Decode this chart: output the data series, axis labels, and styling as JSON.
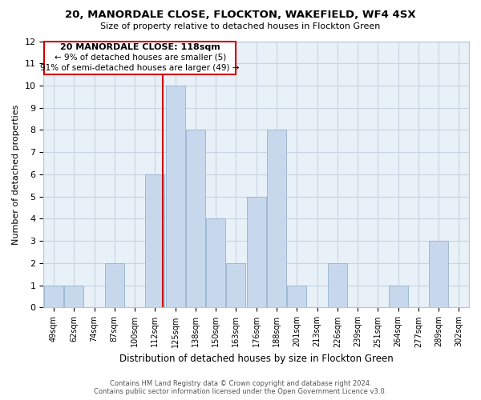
{
  "title": "20, MANORDALE CLOSE, FLOCKTON, WAKEFIELD, WF4 4SX",
  "subtitle": "Size of property relative to detached houses in Flockton Green",
  "xlabel": "Distribution of detached houses by size in Flockton Green",
  "ylabel": "Number of detached properties",
  "bar_color": "#c8d8ec",
  "bar_edge_color": "#a0b8d0",
  "reference_line_color": "#cc0000",
  "categories": [
    "49sqm",
    "62sqm",
    "74sqm",
    "87sqm",
    "100sqm",
    "112sqm",
    "125sqm",
    "138sqm",
    "150sqm",
    "163sqm",
    "176sqm",
    "188sqm",
    "201sqm",
    "213sqm",
    "226sqm",
    "239sqm",
    "251sqm",
    "264sqm",
    "277sqm",
    "289sqm",
    "302sqm"
  ],
  "values": [
    1,
    1,
    0,
    2,
    0,
    6,
    10,
    8,
    4,
    2,
    5,
    8,
    1,
    0,
    2,
    0,
    0,
    1,
    0,
    3,
    0
  ],
  "ref_bar_index": 5,
  "ylim": [
    0,
    12
  ],
  "yticks": [
    0,
    1,
    2,
    3,
    4,
    5,
    6,
    7,
    8,
    9,
    10,
    11,
    12
  ],
  "annotation_title": "20 MANORDALE CLOSE: 118sqm",
  "annotation_line1": "← 9% of detached houses are smaller (5)",
  "annotation_line2": "91% of semi-detached houses are larger (49) →",
  "annotation_box_edge": "#cc0000",
  "footer_line1": "Contains HM Land Registry data © Crown copyright and database right 2024.",
  "footer_line2": "Contains public sector information licensed under the Open Government Licence v3.0.",
  "bg_color": "#ffffff",
  "grid_color": "#c8d4e0",
  "grid_bg_color": "#e8f0f8"
}
